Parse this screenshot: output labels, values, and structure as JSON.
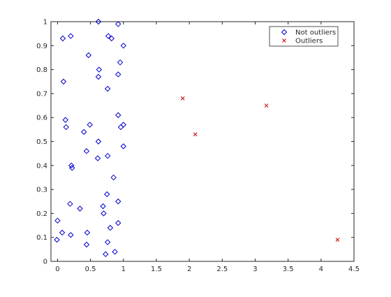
{
  "chart_data": {
    "type": "scatter",
    "xlim": [
      -0.1,
      4.5
    ],
    "ylim": [
      0,
      1
    ],
    "x_ticks": [
      0,
      0.5,
      1,
      1.5,
      2,
      2.5,
      3,
      3.5,
      4,
      4.5
    ],
    "x_tick_labels": [
      "0",
      "0.5",
      "1",
      "1.5",
      "2",
      "2.5",
      "3",
      "3.5",
      "4",
      "4.5"
    ],
    "y_ticks": [
      0,
      0.1,
      0.2,
      0.3,
      0.4,
      0.5,
      0.6,
      0.7,
      0.8,
      0.9,
      1
    ],
    "y_tick_labels": [
      "0",
      "0.1",
      "0.2",
      "0.3",
      "0.4",
      "0.5",
      "0.6",
      "0.7",
      "0.8",
      "0.9",
      "1"
    ],
    "grid": false,
    "legend_position": "top-right",
    "series": [
      {
        "name": "Not outliers",
        "marker": "diamond",
        "color": "#0000cc",
        "points": [
          [
            0.62,
            1.0
          ],
          [
            0.92,
            0.99
          ],
          [
            0.08,
            0.93
          ],
          [
            0.2,
            0.94
          ],
          [
            0.77,
            0.94
          ],
          [
            0.82,
            0.93
          ],
          [
            1.0,
            0.9
          ],
          [
            0.47,
            0.86
          ],
          [
            0.95,
            0.83
          ],
          [
            0.63,
            0.8
          ],
          [
            0.92,
            0.78
          ],
          [
            0.62,
            0.77
          ],
          [
            0.09,
            0.75
          ],
          [
            0.76,
            0.72
          ],
          [
            0.92,
            0.61
          ],
          [
            0.12,
            0.59
          ],
          [
            1.0,
            0.57
          ],
          [
            0.96,
            0.56
          ],
          [
            0.49,
            0.57
          ],
          [
            0.13,
            0.56
          ],
          [
            0.4,
            0.54
          ],
          [
            0.62,
            0.5
          ],
          [
            1.0,
            0.48
          ],
          [
            0.44,
            0.46
          ],
          [
            0.61,
            0.43
          ],
          [
            0.76,
            0.44
          ],
          [
            0.21,
            0.4
          ],
          [
            0.22,
            0.39
          ],
          [
            0.85,
            0.35
          ],
          [
            0.75,
            0.28
          ],
          [
            0.92,
            0.25
          ],
          [
            0.19,
            0.24
          ],
          [
            0.34,
            0.22
          ],
          [
            0.69,
            0.23
          ],
          [
            0.7,
            0.2
          ],
          [
            0.0,
            0.17
          ],
          [
            0.92,
            0.16
          ],
          [
            0.8,
            0.14
          ],
          [
            0.07,
            0.12
          ],
          [
            0.45,
            0.12
          ],
          [
            0.2,
            0.11
          ],
          [
            -0.01,
            0.09
          ],
          [
            0.76,
            0.08
          ],
          [
            0.44,
            0.07
          ],
          [
            0.87,
            0.04
          ],
          [
            0.73,
            0.03
          ]
        ]
      },
      {
        "name": "Outliers",
        "marker": "x",
        "color": "#cc0000",
        "points": [
          [
            1.9,
            0.68
          ],
          [
            2.09,
            0.53
          ],
          [
            3.17,
            0.65
          ],
          [
            4.25,
            0.09
          ]
        ]
      }
    ]
  }
}
